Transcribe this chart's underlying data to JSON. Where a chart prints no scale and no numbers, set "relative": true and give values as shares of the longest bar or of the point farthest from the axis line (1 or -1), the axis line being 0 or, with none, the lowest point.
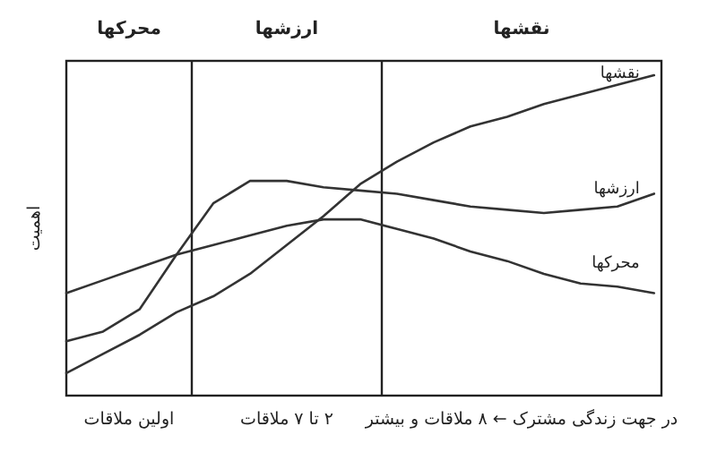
{
  "chart_data": {
    "type": "line",
    "relative": true,
    "ylabel": "اهمیت",
    "categories": [
      null,
      null,
      null,
      null,
      null,
      null,
      null,
      null,
      null,
      null,
      null,
      null,
      null,
      null,
      null,
      null,
      null
    ],
    "series": [
      {
        "name": "نقشها",
        "color": "#333333",
        "values": [
          0.07,
          0.13,
          0.19,
          0.26,
          0.31,
          0.38,
          0.47,
          0.56,
          0.66,
          0.73,
          0.79,
          0.84,
          0.87,
          0.91,
          0.94,
          0.97,
          1
        ]
      },
      {
        "name": "ارزشها",
        "color": "#333333",
        "values": [
          0.17,
          0.2,
          0.27,
          0.44,
          0.6,
          0.67,
          0.67,
          0.65,
          0.64,
          0.63,
          0.61,
          0.59,
          0.58,
          0.57,
          0.58,
          0.59,
          0.63
        ]
      },
      {
        "name": "محرکها",
        "color": "#333333",
        "values": [
          0.32,
          0.36,
          0.4,
          0.44,
          0.47,
          0.5,
          0.53,
          0.55,
          0.55,
          0.52,
          0.49,
          0.45,
          0.42,
          0.38,
          0.35,
          0.34,
          0.32
        ]
      }
    ],
    "annotations": [
      "محرکها",
      "ارزشها",
      "نقشها",
      "اولین ملاقات",
      "۲ تا ۷ ملاقات",
      "در جهت زندگی مشترک ← ۸ ملاقات و بیشتر"
    ]
  }
}
